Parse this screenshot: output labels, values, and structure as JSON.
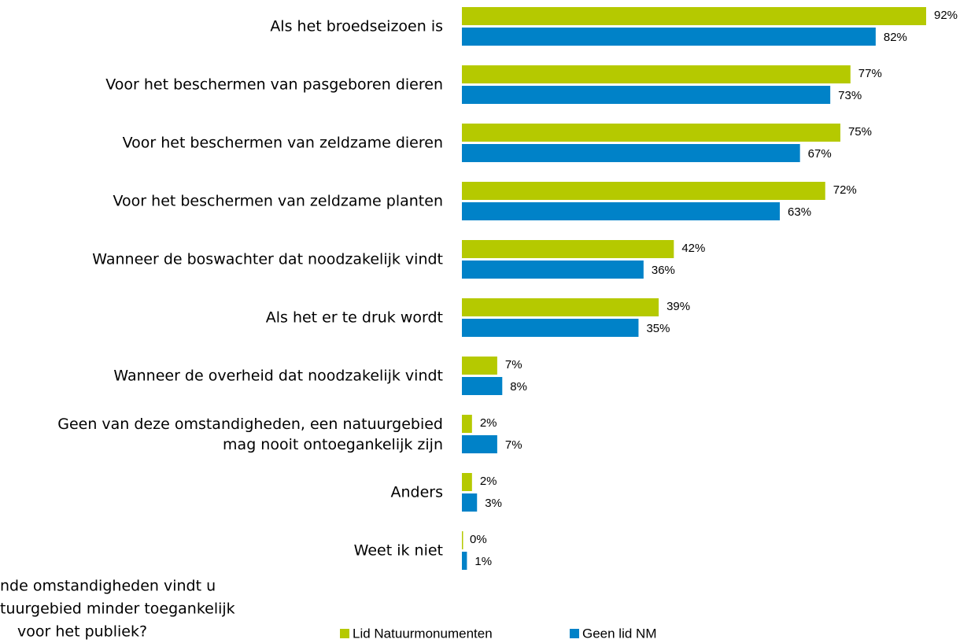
{
  "chart_data": {
    "type": "bar",
    "orientation": "horizontal",
    "title_lines": [
      "nde omstandigheden vindt u",
      "tuurgebied minder toegankelijk",
      "voor het publiek?"
    ],
    "categories": [
      "Als het broedseizoen is",
      "Voor het beschermen van pasgeboren dieren",
      "Voor het beschermen van zeldzame dieren",
      "Voor het beschermen van zeldzame planten",
      "Wanneer de boswachter dat noodzakelijk vindt",
      "Als het er te druk wordt",
      "Wanneer de overheid dat noodzakelijk vindt",
      "Geen van deze omstandigheden, een natuurgebied\nmag nooit ontoegankelijk zijn",
      "Anders",
      "Weet ik niet"
    ],
    "series": [
      {
        "name": "Lid Natuurmonumenten",
        "color": "#b5c900",
        "values": [
          92,
          77,
          75,
          72,
          42,
          39,
          7,
          2,
          2,
          0
        ],
        "value_labels": [
          "92%",
          "77%",
          "75%",
          "72%",
          "42%",
          "39%",
          "7%",
          "2%",
          "2%",
          "0%"
        ]
      },
      {
        "name": "Geen lid NM",
        "color": "#0082c8",
        "values": [
          82,
          73,
          67,
          63,
          36,
          35,
          8,
          7,
          3,
          1
        ],
        "value_labels": [
          "82%",
          "73%",
          "67%",
          "63%",
          "36%",
          "35%",
          "8%",
          "7%",
          "3%",
          "1%"
        ]
      }
    ],
    "legend": "bottom"
  }
}
